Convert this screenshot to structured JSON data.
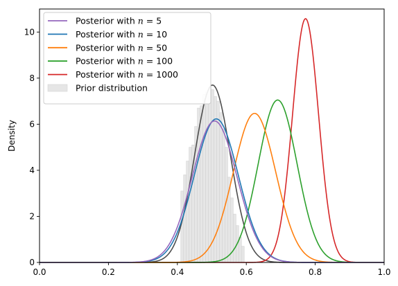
{
  "chart_data": {
    "type": "line",
    "title": "",
    "xlabel": "",
    "ylabel": "Density",
    "xlim": [
      0.0,
      1.0
    ],
    "ylim": [
      0,
      11
    ],
    "xticks": [
      0.0,
      0.2,
      0.4,
      0.6,
      0.8,
      1.0
    ],
    "xtick_labels": [
      "0.0",
      "0.2",
      "0.4",
      "0.6",
      "0.8",
      "1.0"
    ],
    "yticks": [
      0,
      2,
      4,
      6,
      8,
      10
    ],
    "ytick_labels": [
      "0",
      "2",
      "4",
      "6",
      "8",
      "10"
    ],
    "grid": false,
    "legend_position": "top-left",
    "series": [
      {
        "name_prefix": "Posterior with ",
        "n_label": "n",
        "n_value": "5",
        "color": "#9467bd",
        "kind": "posterior",
        "mean": 0.508,
        "sd": 0.065,
        "peak": 6.14
      },
      {
        "name_prefix": "Posterior with ",
        "n_label": "n",
        "n_value": "10",
        "color": "#1f77b4",
        "kind": "posterior",
        "mean": 0.513,
        "sd": 0.064,
        "peak": 6.23
      },
      {
        "name_prefix": "Posterior with ",
        "n_label": "n",
        "n_value": "50",
        "color": "#ff7f0e",
        "kind": "posterior",
        "mean": 0.624,
        "sd": 0.0615,
        "peak": 6.47
      },
      {
        "name_prefix": "Posterior with ",
        "n_label": "n",
        "n_value": "100",
        "color": "#2ca02c",
        "kind": "posterior",
        "mean": 0.691,
        "sd": 0.0565,
        "peak": 7.05
      },
      {
        "name_prefix": "Posterior with ",
        "n_label": "n",
        "n_value": "1000",
        "color": "#d62728",
        "kind": "posterior",
        "mean": 0.772,
        "sd": 0.0378,
        "peak": 10.58
      }
    ],
    "prior": {
      "name": "Prior distribution",
      "bar_color": "#e6e6e6",
      "kde_color": "#4d4d4d",
      "mean": 0.502,
      "sd": 0.0518,
      "peak": 7.7,
      "bins": [
        {
          "x0": 0.41,
          "x1": 0.418,
          "value": 3.1
        },
        {
          "x0": 0.418,
          "x1": 0.426,
          "value": 3.8
        },
        {
          "x0": 0.426,
          "x1": 0.434,
          "value": 4.4
        },
        {
          "x0": 0.434,
          "x1": 0.442,
          "value": 5.0
        },
        {
          "x0": 0.442,
          "x1": 0.45,
          "value": 5.1
        },
        {
          "x0": 0.45,
          "x1": 0.458,
          "value": 5.9
        },
        {
          "x0": 0.458,
          "x1": 0.466,
          "value": 6.7
        },
        {
          "x0": 0.466,
          "x1": 0.474,
          "value": 6.8
        },
        {
          "x0": 0.474,
          "x1": 0.482,
          "value": 7.3
        },
        {
          "x0": 0.482,
          "x1": 0.49,
          "value": 7.4
        },
        {
          "x0": 0.49,
          "x1": 0.498,
          "value": 7.6
        },
        {
          "x0": 0.498,
          "x1": 0.506,
          "value": 7.5
        },
        {
          "x0": 0.506,
          "x1": 0.514,
          "value": 7.2
        },
        {
          "x0": 0.514,
          "x1": 0.522,
          "value": 7.0
        },
        {
          "x0": 0.522,
          "x1": 0.53,
          "value": 6.5
        },
        {
          "x0": 0.53,
          "x1": 0.538,
          "value": 5.8
        },
        {
          "x0": 0.538,
          "x1": 0.546,
          "value": 5.0
        },
        {
          "x0": 0.546,
          "x1": 0.554,
          "value": 3.7
        },
        {
          "x0": 0.554,
          "x1": 0.562,
          "value": 2.8
        },
        {
          "x0": 0.562,
          "x1": 0.57,
          "value": 2.1
        },
        {
          "x0": 0.57,
          "x1": 0.578,
          "value": 1.6
        },
        {
          "x0": 0.578,
          "x1": 0.586,
          "value": 1.1
        },
        {
          "x0": 0.586,
          "x1": 0.594,
          "value": 0.7
        }
      ]
    }
  }
}
